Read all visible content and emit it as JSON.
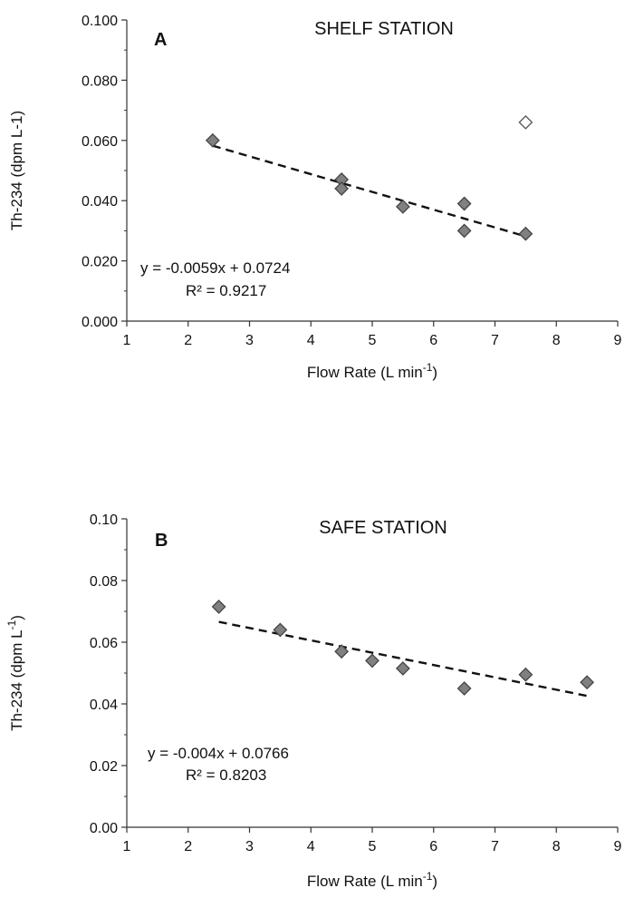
{
  "chart_data": [
    {
      "type": "scatter",
      "panel_label": "A",
      "title": "SHELF STATION",
      "xlabel": "Flow Rate (L min-1)",
      "xlabel_base": "Flow Rate (L min",
      "xlabel_sup": "-1",
      "xlabel_close": ")",
      "ylabel": "Th-234 (dpm L-1)",
      "xlim": [
        1,
        9
      ],
      "ylim": [
        0,
        0.1
      ],
      "x_ticks": [
        "1",
        "2",
        "3",
        "4",
        "5",
        "6",
        "7",
        "8",
        "9"
      ],
      "y_ticks": [
        "0.000",
        "0.020",
        "0.040",
        "0.060",
        "0.080",
        "0.100"
      ],
      "grid": false,
      "series": [
        {
          "marker": "diamond-filled",
          "color": "#808080",
          "x": [
            2.4,
            4.5,
            4.5,
            5.5,
            6.5,
            6.5,
            7.5
          ],
          "y": [
            0.06,
            0.047,
            0.044,
            0.038,
            0.039,
            0.03,
            0.029
          ]
        },
        {
          "marker": "diamond-open",
          "color": "#ffffff",
          "x": [
            7.5
          ],
          "y": [
            0.066
          ]
        }
      ],
      "trendline": {
        "style": "dashed",
        "x_range": [
          2.4,
          7.5
        ],
        "slope": -0.0059,
        "intercept": 0.0724,
        "equation": "y = -0.0059x + 0.0724",
        "r2_label": "R² = 0.9217"
      }
    },
    {
      "type": "scatter",
      "panel_label": "B",
      "title": "SAFE STATION",
      "xlabel": "Flow Rate (L min-1)",
      "xlabel_base": "Flow Rate (L min",
      "xlabel_sup": "-1",
      "xlabel_close": ")",
      "ylabel": "Th-234 (dpm L-1)",
      "ylabel_base": "Th-234 (dpm L",
      "ylabel_sup": "-1",
      "ylabel_close": ")",
      "xlim": [
        1,
        9
      ],
      "ylim": [
        0,
        0.1
      ],
      "x_ticks": [
        "1",
        "2",
        "3",
        "4",
        "5",
        "6",
        "7",
        "8",
        "9"
      ],
      "y_ticks": [
        "0.00",
        "0.02",
        "0.04",
        "0.06",
        "0.08",
        "0.10"
      ],
      "grid": false,
      "series": [
        {
          "marker": "diamond-filled",
          "color": "#808080",
          "x": [
            2.5,
            3.5,
            4.5,
            5.0,
            5.5,
            6.5,
            7.5,
            8.5
          ],
          "y": [
            0.0715,
            0.064,
            0.057,
            0.054,
            0.0515,
            0.045,
            0.0495,
            0.047
          ]
        }
      ],
      "trendline": {
        "style": "dashed",
        "x_range": [
          2.5,
          8.5
        ],
        "slope": -0.004,
        "intercept": 0.0766,
        "equation": "y = -0.004x + 0.0766",
        "r2_label": "R² = 0.8203"
      }
    }
  ]
}
